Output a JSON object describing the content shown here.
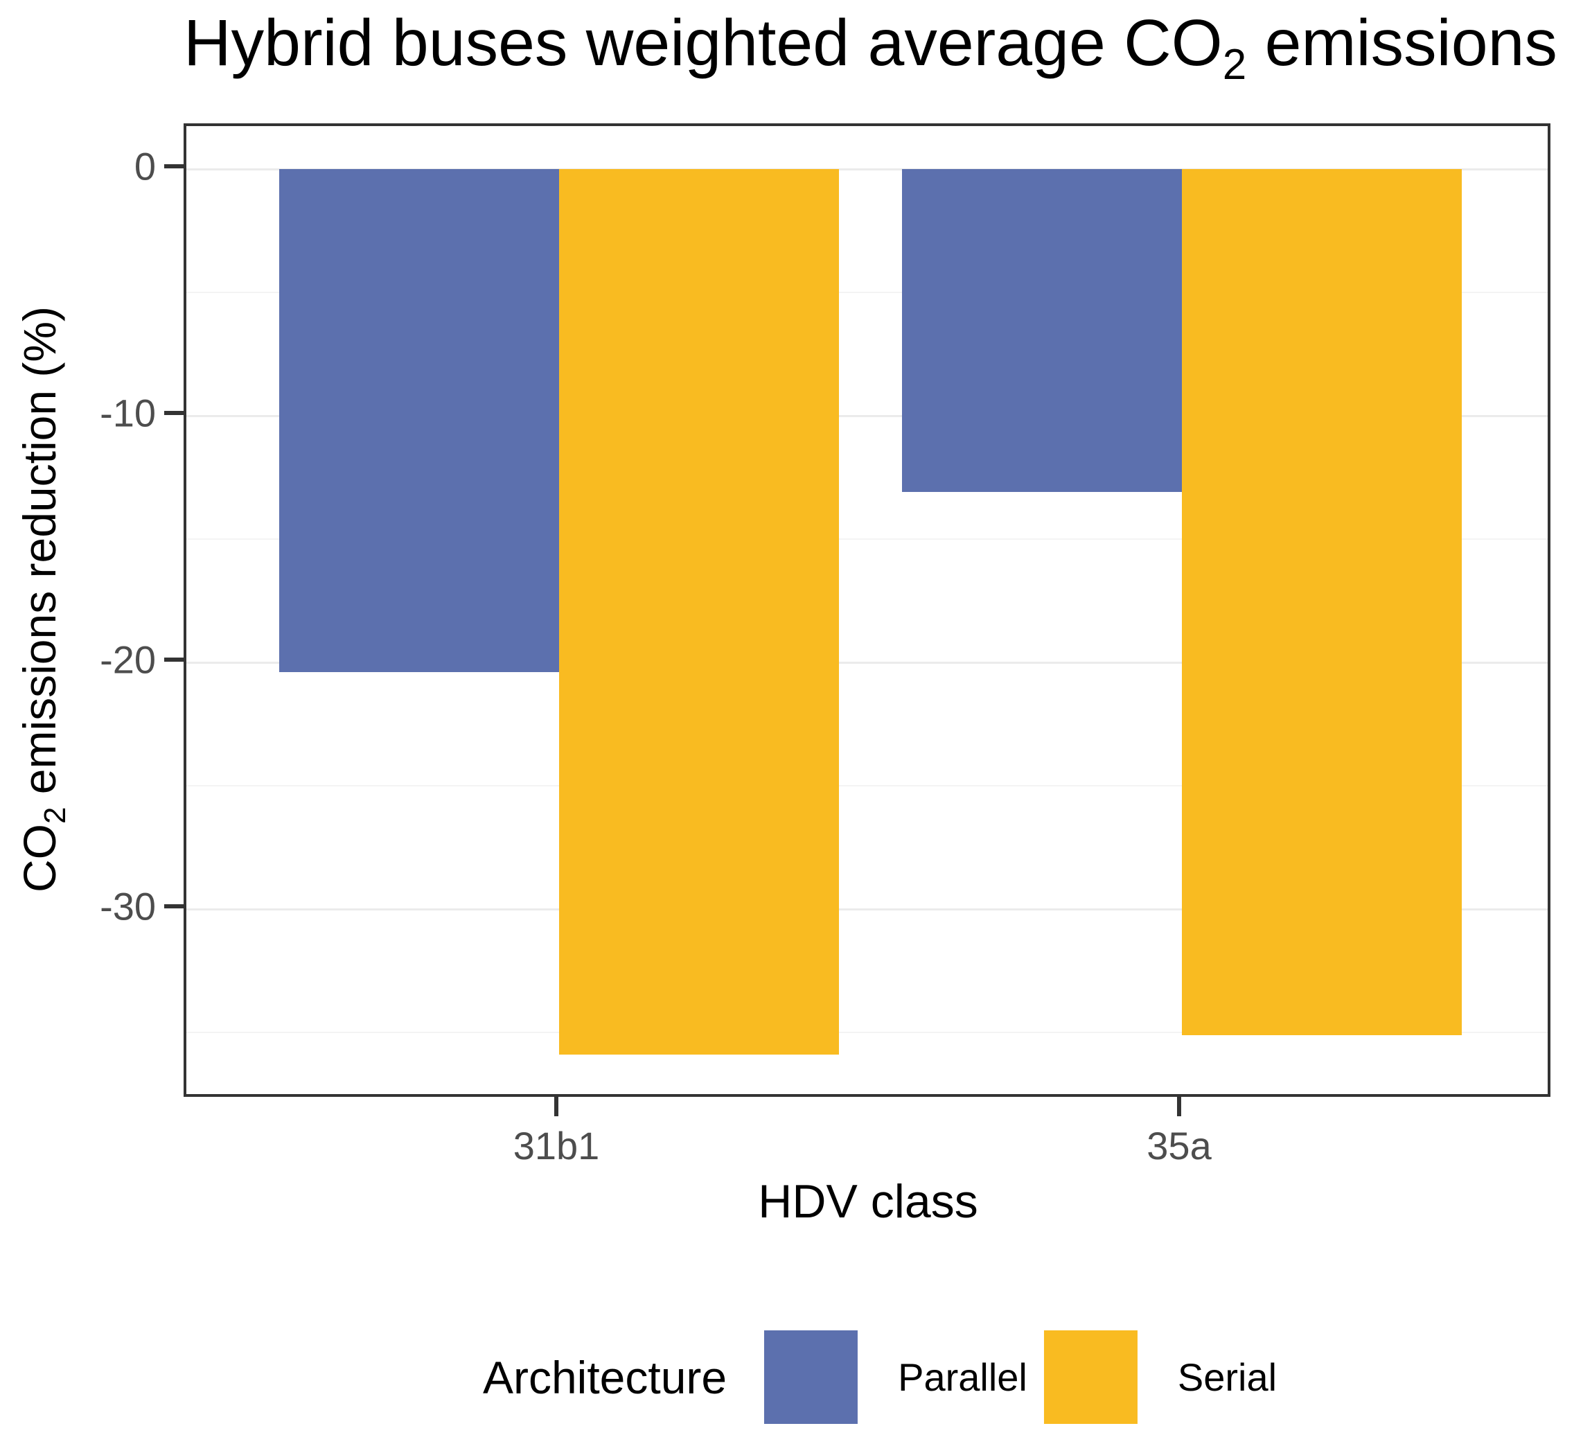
{
  "title": {
    "prefix": "Hybrid buses weighted average CO",
    "sub": "2",
    "suffix": " emissions"
  },
  "axes": {
    "y_title": {
      "prefix": "CO",
      "sub": "2",
      "suffix": " emissions reduction (%)"
    },
    "x_title": "HDV class",
    "y_tick_labels": [
      "0",
      "-10",
      "-20",
      "-30"
    ],
    "y_tick_values": [
      0,
      -10,
      -20,
      -30
    ],
    "y_minor_values": [
      -5,
      -15,
      -25,
      -35
    ]
  },
  "legend": {
    "title": "Architecture",
    "items": [
      {
        "label": "Parallel",
        "color": "#5C70AE"
      },
      {
        "label": "Serial",
        "color": "#F9BB21"
      }
    ]
  },
  "colors": {
    "parallel": "#5C70AE",
    "serial": "#F9BB21",
    "grid_major": "#EBEBEB",
    "grid_minor": "#F4F4F4",
    "axis_text": "#4D4D4D",
    "panel_border": "#333333"
  },
  "chart_data": {
    "type": "bar",
    "title": "Hybrid buses weighted average CO2 emissions",
    "xlabel": "HDV class",
    "ylabel": "CO2 emissions reduction (%)",
    "categories": [
      "31b1",
      "35a"
    ],
    "series": [
      {
        "name": "Parallel",
        "color": "#5C70AE",
        "values": [
          -20.4,
          -13.1
        ]
      },
      {
        "name": "Serial",
        "color": "#F9BB21",
        "values": [
          -35.9,
          -35.1
        ]
      }
    ],
    "ylim": [
      -37.7,
      1.7
    ],
    "y_major_ticks": [
      0,
      -10,
      -20,
      -30
    ],
    "y_minor_ticks": [
      -5,
      -15,
      -25,
      -35
    ],
    "grid": "horizontal major+minor",
    "legend_position": "bottom",
    "bar_layout": "dodged"
  }
}
